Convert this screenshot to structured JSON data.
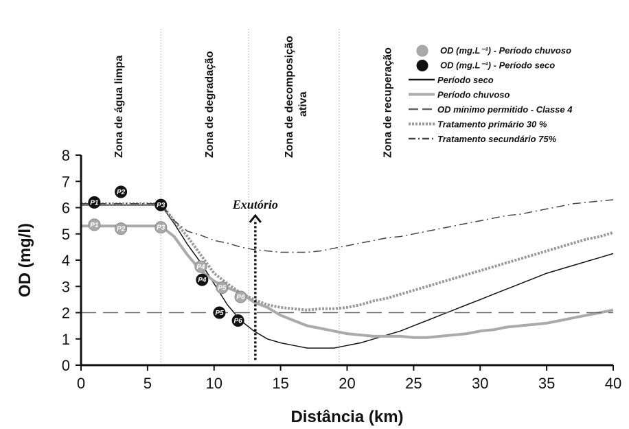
{
  "chart_data": {
    "type": "line",
    "title": "",
    "xlabel": "Distância (km)",
    "ylabel": "OD (mg/l)",
    "xlim": [
      0,
      40
    ],
    "ylim": [
      0,
      8
    ],
    "x_ticks": [
      "0",
      "5",
      "10",
      "15",
      "20",
      "25",
      "30",
      "35",
      "40"
    ],
    "y_ticks": [
      "0",
      "1",
      "2",
      "3",
      "4",
      "5",
      "6",
      "7",
      "8"
    ],
    "zones": [
      {
        "label": "Zona de água limpa",
        "x_center": 3.1
      },
      {
        "label": "Zona de degradação",
        "x_center": 9.9
      },
      {
        "label": "Zona de decomposição",
        "label2": "ativa",
        "x_center": 15.9
      },
      {
        "label": "Zona de recuperação",
        "x_center": 23.3
      }
    ],
    "zone_dividers_x": [
      6.0,
      12.6,
      19.4
    ],
    "annotation": {
      "text": "Exutório",
      "x": 13.1,
      "y_top": 5.7,
      "y_bottom": 0.2
    },
    "series": [
      {
        "name": "Período seco",
        "style": "solid",
        "color": "#111111",
        "width": 1.5,
        "points": [
          [
            0,
            6.1
          ],
          [
            6,
            6.1
          ],
          [
            7,
            5.4
          ],
          [
            8,
            4.6
          ],
          [
            9,
            3.9
          ],
          [
            10,
            3.1
          ],
          [
            11,
            2.3
          ],
          [
            12,
            1.7
          ],
          [
            13,
            1.3
          ],
          [
            14,
            1.0
          ],
          [
            15,
            0.85
          ],
          [
            16,
            0.75
          ],
          [
            17,
            0.65
          ],
          [
            18,
            0.65
          ],
          [
            19,
            0.65
          ],
          [
            20,
            0.75
          ],
          [
            21,
            0.85
          ],
          [
            22,
            1.0
          ],
          [
            23,
            1.15
          ],
          [
            24,
            1.3
          ],
          [
            25,
            1.5
          ],
          [
            26,
            1.7
          ],
          [
            27,
            1.9
          ],
          [
            28,
            2.1
          ],
          [
            29,
            2.3
          ],
          [
            30,
            2.5
          ],
          [
            31,
            2.7
          ],
          [
            32,
            2.9
          ],
          [
            33,
            3.1
          ],
          [
            34,
            3.3
          ],
          [
            35,
            3.5
          ],
          [
            36,
            3.65
          ],
          [
            37,
            3.8
          ],
          [
            38,
            3.95
          ],
          [
            39,
            4.1
          ],
          [
            40,
            4.25
          ]
        ]
      },
      {
        "name": "Período chuvoso",
        "style": "solid",
        "color": "#aaaaaa",
        "width": 4,
        "points": [
          [
            0,
            5.3
          ],
          [
            6,
            5.3
          ],
          [
            7,
            4.9
          ],
          [
            8,
            4.2
          ],
          [
            9,
            3.6
          ],
          [
            10,
            3.2
          ],
          [
            11,
            2.95
          ],
          [
            12,
            2.75
          ],
          [
            13,
            2.4
          ],
          [
            14,
            2.2
          ],
          [
            15,
            1.9
          ],
          [
            16,
            1.7
          ],
          [
            17,
            1.5
          ],
          [
            18,
            1.4
          ],
          [
            19,
            1.3
          ],
          [
            20,
            1.2
          ],
          [
            21,
            1.15
          ],
          [
            22,
            1.1
          ],
          [
            23,
            1.1
          ],
          [
            24,
            1.1
          ],
          [
            25,
            1.05
          ],
          [
            26,
            1.05
          ],
          [
            27,
            1.1
          ],
          [
            28,
            1.15
          ],
          [
            29,
            1.2
          ],
          [
            30,
            1.3
          ],
          [
            31,
            1.35
          ],
          [
            32,
            1.45
          ],
          [
            33,
            1.5
          ],
          [
            34,
            1.55
          ],
          [
            35,
            1.6
          ],
          [
            36,
            1.7
          ],
          [
            37,
            1.8
          ],
          [
            38,
            1.9
          ],
          [
            39,
            2.0
          ],
          [
            40,
            2.1
          ]
        ]
      },
      {
        "name": "OD mínimo permitido - Classe 4",
        "style": "dashed",
        "color": "#666666",
        "width": 1.5,
        "points": [
          [
            0,
            2.0
          ],
          [
            40,
            2.0
          ]
        ]
      },
      {
        "name": "Tratamento primário 30 %",
        "style": "dotted",
        "color": "#999999",
        "width": 4,
        "points": [
          [
            0,
            6.15
          ],
          [
            6,
            6.15
          ],
          [
            7,
            5.5
          ],
          [
            8,
            4.9
          ],
          [
            9,
            4.2
          ],
          [
            10,
            3.5
          ],
          [
            11,
            3.1
          ],
          [
            12,
            2.75
          ],
          [
            13,
            2.5
          ],
          [
            14,
            2.3
          ],
          [
            15,
            2.2
          ],
          [
            16,
            2.15
          ],
          [
            17,
            2.1
          ],
          [
            18,
            2.15
          ],
          [
            19,
            2.15
          ],
          [
            20,
            2.2
          ],
          [
            21,
            2.3
          ],
          [
            22,
            2.45
          ],
          [
            23,
            2.55
          ],
          [
            24,
            2.7
          ],
          [
            25,
            2.85
          ],
          [
            26,
            3.0
          ],
          [
            27,
            3.15
          ],
          [
            28,
            3.3
          ],
          [
            29,
            3.45
          ],
          [
            30,
            3.6
          ],
          [
            31,
            3.75
          ],
          [
            32,
            3.9
          ],
          [
            33,
            4.05
          ],
          [
            34,
            4.2
          ],
          [
            35,
            4.35
          ],
          [
            36,
            4.5
          ],
          [
            37,
            4.65
          ],
          [
            38,
            4.8
          ],
          [
            39,
            4.9
          ],
          [
            40,
            5.05
          ]
        ]
      },
      {
        "name": "Tratamento secundário 75%",
        "style": "dashdot",
        "color": "#444444",
        "width": 1.5,
        "points": [
          [
            0,
            6.15
          ],
          [
            6,
            6.15
          ],
          [
            7,
            5.5
          ],
          [
            8,
            5.1
          ],
          [
            9,
            4.95
          ],
          [
            10,
            4.75
          ],
          [
            11,
            4.65
          ],
          [
            12,
            4.5
          ],
          [
            13,
            4.4
          ],
          [
            14,
            4.35
          ],
          [
            15,
            4.3
          ],
          [
            16,
            4.3
          ],
          [
            17,
            4.3
          ],
          [
            18,
            4.35
          ],
          [
            19,
            4.45
          ],
          [
            20,
            4.55
          ],
          [
            21,
            4.65
          ],
          [
            22,
            4.75
          ],
          [
            23,
            4.85
          ],
          [
            24,
            4.9
          ],
          [
            25,
            5.0
          ],
          [
            26,
            5.1
          ],
          [
            27,
            5.2
          ],
          [
            28,
            5.3
          ],
          [
            29,
            5.4
          ],
          [
            30,
            5.5
          ],
          [
            31,
            5.6
          ],
          [
            32,
            5.7
          ],
          [
            33,
            5.75
          ],
          [
            34,
            5.85
          ],
          [
            35,
            5.95
          ],
          [
            36,
            6.05
          ],
          [
            37,
            6.15
          ],
          [
            38,
            6.2
          ],
          [
            39,
            6.25
          ],
          [
            40,
            6.3
          ]
        ]
      }
    ],
    "observed": [
      {
        "name": "OD (mg.L⁻¹) - Período chuvoso",
        "color": "#aaaaaa",
        "points": [
          {
            "label": "P1",
            "x": 1,
            "y": 5.35
          },
          {
            "label": "P2",
            "x": 3,
            "y": 5.2
          },
          {
            "label": "P3",
            "x": 6,
            "y": 5.25
          },
          {
            "label": "P4",
            "x": 9,
            "y": 3.75
          },
          {
            "label": "P5",
            "x": 10.6,
            "y": 2.95
          },
          {
            "label": "P6",
            "x": 12.0,
            "y": 2.6
          }
        ]
      },
      {
        "name": "OD (mg.L⁻¹) - Período seco",
        "color": "#111111",
        "points": [
          {
            "label": "P1",
            "x": 1,
            "y": 6.2
          },
          {
            "label": "P2",
            "x": 3,
            "y": 6.6
          },
          {
            "label": "P3",
            "x": 6,
            "y": 6.1
          },
          {
            "label": "P4",
            "x": 9.1,
            "y": 3.25
          },
          {
            "label": "P5",
            "x": 10.4,
            "y": 2.0
          },
          {
            "label": "P6",
            "x": 11.8,
            "y": 1.7
          }
        ]
      }
    ],
    "legend": {
      "placement": "top-right",
      "entries": [
        {
          "marker": "circle",
          "color": "#aaaaaa",
          "label": "OD (mg.L⁻¹) - Período chuvoso"
        },
        {
          "marker": "circle",
          "color": "#111111",
          "label": "OD (mg.L⁻¹) - Período seco"
        },
        {
          "marker": "solid",
          "color": "#111111",
          "label": "Período seco"
        },
        {
          "marker": "solid-thick",
          "color": "#aaaaaa",
          "label": "Período chuvoso"
        },
        {
          "marker": "dashed",
          "color": "#666666",
          "label": "OD mínimo permitido - Classe 4"
        },
        {
          "marker": "dotted",
          "color": "#999999",
          "label": "Tratamento primário 30 %"
        },
        {
          "marker": "dashdot",
          "color": "#444444",
          "label": "Tratamento secundário 75%"
        }
      ]
    },
    "grid": false
  }
}
